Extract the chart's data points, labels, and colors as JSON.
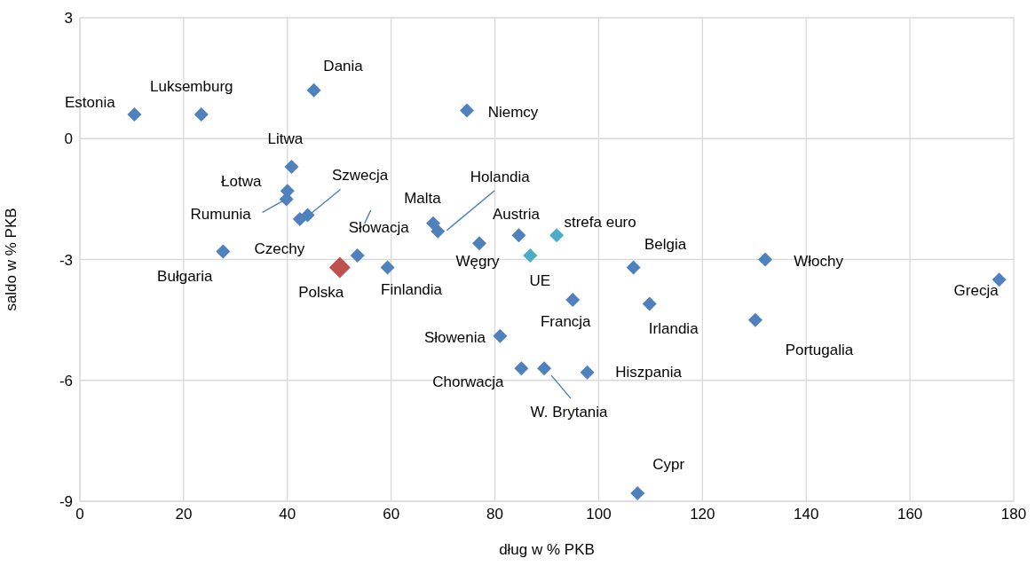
{
  "chart_data": {
    "type": "scatter",
    "xlabel": "dług w % PKB",
    "ylabel": "saldo w % PKB",
    "xlim": [
      0,
      180
    ],
    "xticks": [
      0,
      20,
      40,
      60,
      80,
      100,
      120,
      140,
      160,
      180
    ],
    "ylim": [
      -9,
      3
    ],
    "yticks": [
      -9,
      -6,
      -3,
      0,
      3
    ],
    "grid": true,
    "legend": false,
    "marker": "diamond",
    "series": [
      {
        "color": "#4f81bd",
        "x": [
          10.5,
          23.4,
          45.1,
          74.6,
          40.8,
          40.0,
          39.8,
          43.9,
          42.4,
          53.5,
          59.3,
          27.6,
          68.1,
          69.0,
          77.0,
          84.6,
          106.7,
          132.1,
          177.2,
          95.0,
          109.8,
          130.2,
          81.0,
          85.1,
          89.5,
          97.8,
          107.5
        ],
        "values": [
          0.6,
          0.6,
          1.2,
          0.7,
          -0.7,
          -1.3,
          -1.5,
          -1.9,
          -2.0,
          -2.9,
          -3.2,
          -2.8,
          -2.1,
          -2.3,
          -2.6,
          -2.4,
          -3.2,
          -3.0,
          -3.5,
          -4.0,
          -4.1,
          -4.5,
          -4.9,
          -5.7,
          -5.7,
          -5.8,
          -8.8
        ],
        "value_labels": [
          "Estonia",
          "Luksemburg",
          "Dania",
          "Niemcy",
          "Litwa",
          "Łotwa",
          "Rumunia",
          "Szwecja",
          "Czechy",
          "Słowacja",
          "Finlandia",
          "Bułgaria",
          "Malta",
          "Holandia",
          "Węgry",
          "Austria",
          "Belgia",
          "Włochy",
          "Grecja",
          "Francja",
          "Irlandia",
          "Portugalia",
          "Słowenia",
          "Chorwacja",
          "W. Brytania",
          "Hiszpania",
          "Cypr"
        ]
      },
      {
        "color": "#4bacc6",
        "x": [
          91.9,
          86.8
        ],
        "values": [
          -2.4,
          -2.9
        ],
        "value_labels": [
          "strefa euro",
          "UE"
        ]
      },
      {
        "color": "#c0504d",
        "x": [
          50.1
        ],
        "values": [
          -3.2
        ],
        "value_labels": [
          "Polska"
        ]
      }
    ]
  }
}
